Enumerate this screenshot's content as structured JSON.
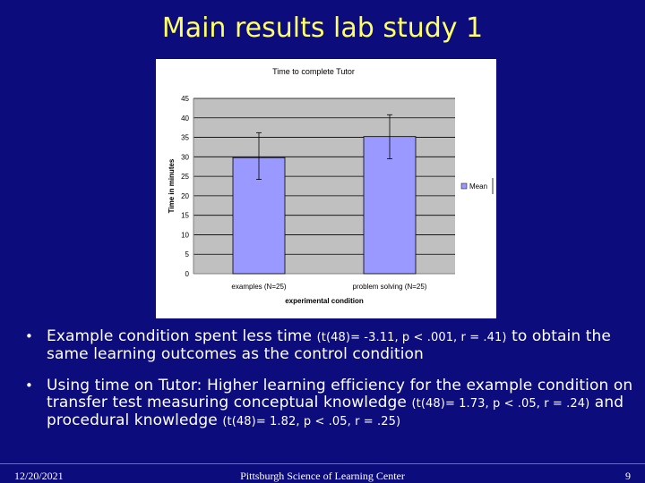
{
  "slide": {
    "title": "Main results lab study 1"
  },
  "chart_data": {
    "type": "bar",
    "title": "Time to complete Tutor",
    "xlabel": "experimental condition",
    "ylabel": "Time in minutes",
    "ylim": [
      0,
      45
    ],
    "yticks": [
      "0",
      "5",
      "10",
      "15",
      "20",
      "25",
      "30",
      "35",
      "40",
      "45"
    ],
    "categories": [
      "examples (N=25)",
      "problem solving (N=25)"
    ],
    "series": [
      {
        "name": "Mean",
        "values": [
          29.8,
          35.2
        ],
        "error_low": [
          24.2,
          29.5
        ],
        "error_high": [
          36.2,
          40.8
        ]
      }
    ],
    "grid": true,
    "legend": "right",
    "colors": {
      "bar": "#9999ff",
      "plot_bg": "#c0c0c0",
      "gridline": "#000000"
    }
  },
  "bullets": [
    {
      "segments": [
        {
          "text": "Example condition spent less time ",
          "small": false
        },
        {
          "text": "(t(48)= -3.11, p < .001, r = .41)",
          "small": true
        },
        {
          "text": " to obtain the same learning outcomes as the control condition",
          "small": false
        }
      ]
    },
    {
      "segments": [
        {
          "text": "Using time on Tutor: Higher learning efficiency for the example condition on transfer test measuring conceptual knowledge ",
          "small": false
        },
        {
          "text": "(t(48)= 1.73, p < .05, r = .24)",
          "small": true
        },
        {
          "text": " and procedural knowledge ",
          "small": false
        },
        {
          "text": "(t(48)= 1.82, p < .05, r = .25)",
          "small": true
        }
      ]
    }
  ],
  "footer": {
    "date": "12/20/2021",
    "center": "Pittsburgh Science of Learning Center",
    "page": "9"
  }
}
